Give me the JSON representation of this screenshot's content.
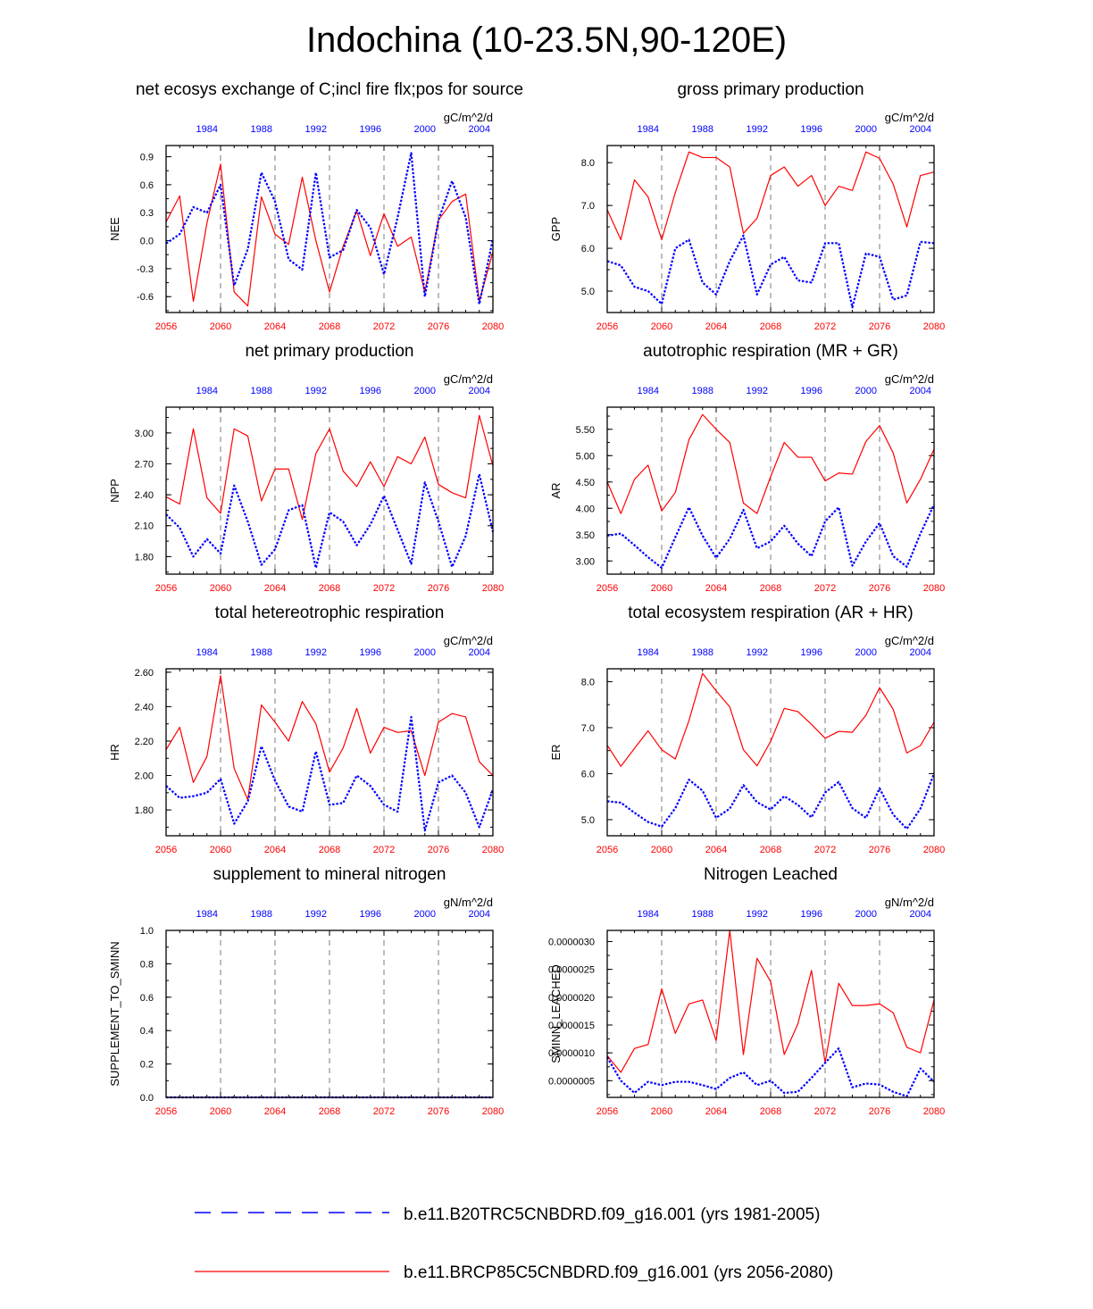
{
  "page_title": "Indochina (10-23.5N,90-120E)",
  "colors": {
    "red": "#ff0000",
    "blue": "#0000ff",
    "axis": "#000000",
    "grid": "#444444"
  },
  "top_axis_ticks": [
    "1984",
    "1988",
    "1992",
    "1996",
    "2000",
    "2004"
  ],
  "bottom_axis_ticks": [
    "2056",
    "2060",
    "2064",
    "2068",
    "2072",
    "2076",
    "2080"
  ],
  "legend": [
    {
      "label": "b.e11.B20TRC5CNBDRD.f09_g16.001 (yrs 1981-2005)",
      "color": "#0000ff",
      "style": "dashed"
    },
    {
      "label": "b.e11.BRCP85C5CNBDRD.f09_g16.001 (yrs 2056-2080)",
      "color": "#ff0000",
      "style": "solid"
    }
  ],
  "chart_data": [
    {
      "type": "line",
      "title": "net ecosys exchange of C;incl fire flx;pos for source",
      "units": "gC/m^2/d",
      "ylabel": "NEE",
      "ylim": [
        -0.77,
        1.02
      ],
      "yticks": [
        -0.6,
        -0.3,
        0.0,
        0.3,
        0.6,
        0.9
      ],
      "ytick_labels": [
        "-0.6",
        "-0.3",
        "0.0",
        "0.3",
        "0.6",
        "0.9"
      ],
      "x_future": [
        2056,
        2057,
        2058,
        2059,
        2060,
        2061,
        2062,
        2063,
        2064,
        2065,
        2066,
        2067,
        2068,
        2069,
        2070,
        2071,
        2072,
        2073,
        2074,
        2075,
        2076,
        2077,
        2078,
        2079,
        2080
      ],
      "x_hist": [
        1981,
        1982,
        1983,
        1984,
        1985,
        1986,
        1987,
        1988,
        1989,
        1990,
        1991,
        1992,
        1993,
        1994,
        1995,
        1996,
        1997,
        1998,
        1999,
        2000,
        2001,
        2002,
        2003,
        2004,
        2005
      ],
      "series": [
        {
          "name": "b.e11.BRCP85C5CNBDRD.f09_g16.001",
          "color": "#ff0000",
          "values": [
            0.2,
            0.48,
            -0.65,
            0.19,
            0.82,
            -0.55,
            -0.7,
            0.47,
            0.07,
            -0.04,
            0.68,
            0.0,
            -0.55,
            -0.06,
            0.32,
            -0.16,
            0.29,
            -0.06,
            0.04,
            -0.55,
            0.22,
            0.42,
            0.5,
            -0.65,
            -0.12
          ]
        },
        {
          "name": "b.e11.B20TRC5CNBDRD.f09_g16.001",
          "color": "#0000ff",
          "values": [
            -0.03,
            0.07,
            0.36,
            0.3,
            0.6,
            -0.48,
            -0.09,
            0.73,
            0.42,
            -0.2,
            -0.31,
            0.73,
            -0.18,
            -0.1,
            0.33,
            0.14,
            -0.36,
            0.25,
            0.94,
            -0.6,
            0.22,
            0.64,
            0.25,
            -0.68,
            0.02
          ]
        }
      ]
    },
    {
      "type": "line",
      "title": "gross primary production",
      "units": "gC/m^2/d",
      "ylabel": "GPP",
      "ylim": [
        4.5,
        8.4
      ],
      "yticks": [
        5.0,
        6.0,
        7.0,
        8.0
      ],
      "ytick_labels": [
        "5.0",
        "6.0",
        "7.0",
        "8.0"
      ],
      "x_future": [
        2056,
        2057,
        2058,
        2059,
        2060,
        2061,
        2062,
        2063,
        2064,
        2065,
        2066,
        2067,
        2068,
        2069,
        2070,
        2071,
        2072,
        2073,
        2074,
        2075,
        2076,
        2077,
        2078,
        2079,
        2080
      ],
      "x_hist": [
        1981,
        1982,
        1983,
        1984,
        1985,
        1986,
        1987,
        1988,
        1989,
        1990,
        1991,
        1992,
        1993,
        1994,
        1995,
        1996,
        1997,
        1998,
        1999,
        2000,
        2001,
        2002,
        2003,
        2004,
        2005
      ],
      "series": [
        {
          "name": "b.e11.BRCP85C5CNBDRD.f09_g16.001",
          "color": "#ff0000",
          "values": [
            6.9,
            6.2,
            7.6,
            7.2,
            6.2,
            7.3,
            8.25,
            8.12,
            8.12,
            7.9,
            6.35,
            6.7,
            7.7,
            7.9,
            7.45,
            7.7,
            7.0,
            7.45,
            7.35,
            8.25,
            8.1,
            7.5,
            6.5,
            7.7,
            7.78
          ]
        },
        {
          "name": "b.e11.B20TRC5CNBDRD.f09_g16.001",
          "color": "#0000ff",
          "values": [
            5.7,
            5.6,
            5.1,
            5.0,
            4.7,
            6.0,
            6.2,
            5.2,
            4.92,
            5.7,
            6.3,
            4.92,
            5.62,
            5.8,
            5.25,
            5.2,
            6.12,
            6.12,
            4.62,
            5.88,
            5.8,
            4.8,
            4.9,
            6.15,
            6.12
          ]
        }
      ]
    },
    {
      "type": "line",
      "title": "net primary production",
      "units": "gC/m^2/d",
      "ylabel": "NPP",
      "ylim": [
        1.63,
        3.25
      ],
      "yticks": [
        1.8,
        2.1,
        2.4,
        2.7,
        3.0
      ],
      "ytick_labels": [
        "1.80",
        "2.10",
        "2.40",
        "2.70",
        "3.00"
      ],
      "x_future": [
        2056,
        2057,
        2058,
        2059,
        2060,
        2061,
        2062,
        2063,
        2064,
        2065,
        2066,
        2067,
        2068,
        2069,
        2070,
        2071,
        2072,
        2073,
        2074,
        2075,
        2076,
        2077,
        2078,
        2079,
        2080
      ],
      "x_hist": [
        1981,
        1982,
        1983,
        1984,
        1985,
        1986,
        1987,
        1988,
        1989,
        1990,
        1991,
        1992,
        1993,
        1994,
        1995,
        1996,
        1997,
        1998,
        1999,
        2000,
        2001,
        2002,
        2003,
        2004,
        2005
      ],
      "series": [
        {
          "name": "b.e11.BRCP85C5CNBDRD.f09_g16.001",
          "color": "#ff0000",
          "values": [
            2.38,
            2.31,
            3.04,
            2.37,
            2.22,
            3.04,
            2.97,
            2.34,
            2.65,
            2.65,
            2.16,
            2.8,
            3.04,
            2.63,
            2.48,
            2.72,
            2.48,
            2.77,
            2.7,
            2.96,
            2.5,
            2.42,
            2.37,
            3.17,
            2.68
          ]
        },
        {
          "name": "b.e11.B20TRC5CNBDRD.f09_g16.001",
          "color": "#0000ff",
          "values": [
            2.21,
            2.08,
            1.8,
            1.97,
            1.83,
            2.49,
            2.14,
            1.72,
            1.87,
            2.25,
            2.3,
            1.69,
            2.23,
            2.14,
            1.91,
            2.11,
            2.39,
            2.06,
            1.73,
            2.52,
            2.14,
            1.7,
            2.0,
            2.6,
            2.04
          ]
        }
      ]
    },
    {
      "type": "line",
      "title": "autotrophic respiration (MR + GR)",
      "units": "gC/m^2/d",
      "ylabel": "AR",
      "ylim": [
        2.75,
        5.92
      ],
      "yticks": [
        3.0,
        3.5,
        4.0,
        4.5,
        5.0,
        5.5
      ],
      "ytick_labels": [
        "3.00",
        "3.50",
        "4.00",
        "4.50",
        "5.00",
        "5.50"
      ],
      "x_future": [
        2056,
        2057,
        2058,
        2059,
        2060,
        2061,
        2062,
        2063,
        2064,
        2065,
        2066,
        2067,
        2068,
        2069,
        2070,
        2071,
        2072,
        2073,
        2074,
        2075,
        2076,
        2077,
        2078,
        2079,
        2080
      ],
      "x_hist": [
        1981,
        1982,
        1983,
        1984,
        1985,
        1986,
        1987,
        1988,
        1989,
        1990,
        1991,
        1992,
        1993,
        1994,
        1995,
        1996,
        1997,
        1998,
        1999,
        2000,
        2001,
        2002,
        2003,
        2004,
        2005
      ],
      "series": [
        {
          "name": "b.e11.BRCP85C5CNBDRD.f09_g16.001",
          "color": "#ff0000",
          "values": [
            4.5,
            3.9,
            4.55,
            4.82,
            3.95,
            4.3,
            5.3,
            5.78,
            5.5,
            5.25,
            4.1,
            3.9,
            4.6,
            5.25,
            4.97,
            4.97,
            4.52,
            4.67,
            4.65,
            5.27,
            5.57,
            5.05,
            4.1,
            4.55,
            5.12
          ]
        },
        {
          "name": "b.e11.B20TRC5CNBDRD.f09_g16.001",
          "color": "#0000ff",
          "values": [
            3.48,
            3.52,
            3.3,
            3.07,
            2.87,
            3.45,
            4.02,
            3.48,
            3.06,
            3.42,
            3.97,
            3.24,
            3.37,
            3.67,
            3.33,
            3.09,
            3.75,
            4.02,
            2.91,
            3.37,
            3.72,
            3.09,
            2.89,
            3.52,
            4.07
          ]
        }
      ]
    },
    {
      "type": "line",
      "title": "total hetereotrophic respiration",
      "units": "gC/m^2/d",
      "ylabel": "HR",
      "ylim": [
        1.65,
        2.62
      ],
      "yticks": [
        1.8,
        2.0,
        2.2,
        2.4,
        2.6
      ],
      "ytick_labels": [
        "1.80",
        "2.00",
        "2.20",
        "2.40",
        "2.60"
      ],
      "x_future": [
        2056,
        2057,
        2058,
        2059,
        2060,
        2061,
        2062,
        2063,
        2064,
        2065,
        2066,
        2067,
        2068,
        2069,
        2070,
        2071,
        2072,
        2073,
        2074,
        2075,
        2076,
        2077,
        2078,
        2079,
        2080
      ],
      "x_hist": [
        1981,
        1982,
        1983,
        1984,
        1985,
        1986,
        1987,
        1988,
        1989,
        1990,
        1991,
        1992,
        1993,
        1994,
        1995,
        1996,
        1997,
        1998,
        1999,
        2000,
        2001,
        2002,
        2003,
        2004,
        2005
      ],
      "series": [
        {
          "name": "b.e11.BRCP85C5CNBDRD.f09_g16.001",
          "color": "#ff0000",
          "values": [
            2.15,
            2.28,
            1.96,
            2.11,
            2.58,
            2.04,
            1.86,
            2.41,
            2.31,
            2.2,
            2.43,
            2.3,
            2.02,
            2.16,
            2.39,
            2.13,
            2.28,
            2.25,
            2.26,
            2.0,
            2.31,
            2.36,
            2.34,
            2.08,
            2.0
          ]
        },
        {
          "name": "b.e11.B20TRC5CNBDRD.f09_g16.001",
          "color": "#0000ff",
          "values": [
            1.94,
            1.87,
            1.88,
            1.9,
            1.98,
            1.72,
            1.85,
            2.17,
            1.97,
            1.82,
            1.79,
            2.14,
            1.83,
            1.84,
            2.0,
            1.94,
            1.83,
            1.79,
            2.34,
            1.68,
            1.96,
            2.0,
            1.9,
            1.7,
            1.92
          ]
        }
      ]
    },
    {
      "type": "line",
      "title": "total ecosystem respiration (AR + HR)",
      "units": "gC/m^2/d",
      "ylabel": "ER",
      "ylim": [
        4.65,
        8.28
      ],
      "yticks": [
        5.0,
        6.0,
        7.0,
        8.0
      ],
      "ytick_labels": [
        "5.0",
        "6.0",
        "7.0",
        "8.0"
      ],
      "x_future": [
        2056,
        2057,
        2058,
        2059,
        2060,
        2061,
        2062,
        2063,
        2064,
        2065,
        2066,
        2067,
        2068,
        2069,
        2070,
        2071,
        2072,
        2073,
        2074,
        2075,
        2076,
        2077,
        2078,
        2079,
        2080
      ],
      "x_hist": [
        1981,
        1982,
        1983,
        1984,
        1985,
        1986,
        1987,
        1988,
        1989,
        1990,
        1991,
        1992,
        1993,
        1994,
        1995,
        1996,
        1997,
        1998,
        1999,
        2000,
        2001,
        2002,
        2003,
        2004,
        2005
      ],
      "series": [
        {
          "name": "b.e11.BRCP85C5CNBDRD.f09_g16.001",
          "color": "#ff0000",
          "values": [
            6.62,
            6.16,
            6.55,
            6.93,
            6.52,
            6.32,
            7.15,
            8.18,
            7.8,
            7.45,
            6.52,
            6.17,
            6.7,
            7.42,
            7.35,
            7.07,
            6.77,
            6.92,
            6.9,
            7.27,
            7.87,
            7.4,
            6.45,
            6.61,
            7.12
          ]
        },
        {
          "name": "b.e11.B20TRC5CNBDRD.f09_g16.001",
          "color": "#0000ff",
          "values": [
            5.4,
            5.37,
            5.15,
            4.95,
            4.85,
            5.25,
            5.87,
            5.63,
            5.04,
            5.24,
            5.75,
            5.38,
            5.22,
            5.51,
            5.32,
            5.05,
            5.59,
            5.82,
            5.25,
            5.04,
            5.68,
            5.11,
            4.8,
            5.24,
            6.0
          ]
        }
      ]
    },
    {
      "type": "line",
      "title": "supplement to mineral nitrogen",
      "units": "gN/m^2/d",
      "ylabel": "SUPPLEMENT_TO_SMINN",
      "ylim": [
        0.0,
        1.0
      ],
      "yticks": [
        0.0,
        0.2,
        0.4,
        0.6,
        0.8,
        1.0
      ],
      "ytick_labels": [
        "0.0",
        "0.2",
        "0.4",
        "0.6",
        "0.8",
        "1.0"
      ],
      "x_future": [
        2056,
        2057,
        2058,
        2059,
        2060,
        2061,
        2062,
        2063,
        2064,
        2065,
        2066,
        2067,
        2068,
        2069,
        2070,
        2071,
        2072,
        2073,
        2074,
        2075,
        2076,
        2077,
        2078,
        2079,
        2080
      ],
      "x_hist": [
        1981,
        1982,
        1983,
        1984,
        1985,
        1986,
        1987,
        1988,
        1989,
        1990,
        1991,
        1992,
        1993,
        1994,
        1995,
        1996,
        1997,
        1998,
        1999,
        2000,
        2001,
        2002,
        2003,
        2004,
        2005
      ],
      "series": [
        {
          "name": "b.e11.BRCP85C5CNBDRD.f09_g16.001",
          "color": "#ff0000",
          "values": [
            0,
            0,
            0,
            0,
            0,
            0,
            0,
            0,
            0,
            0,
            0,
            0,
            0,
            0,
            0,
            0,
            0,
            0,
            0,
            0,
            0,
            0,
            0,
            0,
            0
          ]
        },
        {
          "name": "b.e11.B20TRC5CNBDRD.f09_g16.001",
          "color": "#0000ff",
          "values": [
            0,
            0,
            0,
            0,
            0,
            0,
            0,
            0,
            0,
            0,
            0,
            0,
            0,
            0,
            0,
            0,
            0,
            0,
            0,
            0,
            0,
            0,
            0,
            0,
            0
          ]
        }
      ]
    },
    {
      "type": "line",
      "title": "Nitrogen Leached",
      "units": "gN/m^2/d",
      "ylabel": "SMINN_LEACHED",
      "ylim": [
        2e-07,
        3.2e-06
      ],
      "yticks": [
        5e-07,
        1e-06,
        1.5e-06,
        2e-06,
        2.5e-06,
        3e-06
      ],
      "ytick_labels": [
        "0.0000005",
        "0.0000010",
        "0.0000015",
        "0.0000020",
        "0.0000025",
        "0.0000030"
      ],
      "x_future": [
        2056,
        2057,
        2058,
        2059,
        2060,
        2061,
        2062,
        2063,
        2064,
        2065,
        2066,
        2067,
        2068,
        2069,
        2070,
        2071,
        2072,
        2073,
        2074,
        2075,
        2076,
        2077,
        2078,
        2079,
        2080
      ],
      "x_hist": [
        1981,
        1982,
        1983,
        1984,
        1985,
        1986,
        1987,
        1988,
        1989,
        1990,
        1991,
        1992,
        1993,
        1994,
        1995,
        1996,
        1997,
        1998,
        1999,
        2000,
        2001,
        2002,
        2003,
        2004,
        2005
      ],
      "series": [
        {
          "name": "b.e11.BRCP85C5CNBDRD.f09_g16.001",
          "color": "#ff0000",
          "values": [
            9.5e-07,
            6.5e-07,
            1.08e-06,
            1.15e-06,
            2.15e-06,
            1.35e-06,
            1.88e-06,
            1.95e-06,
            1.22e-06,
            3.2e-06,
            9.7e-07,
            2.7e-06,
            2.28e-06,
            9.7e-07,
            1.52e-06,
            2.48e-06,
            8.2e-07,
            2.25e-06,
            1.85e-06,
            1.85e-06,
            1.88e-06,
            1.72e-06,
            1.1e-06,
            1e-06,
            1.95e-06
          ]
        },
        {
          "name": "b.e11.B20TRC5CNBDRD.f09_g16.001",
          "color": "#0000ff",
          "values": [
            9.2e-07,
            5e-07,
            2.8e-07,
            4.8e-07,
            4.2e-07,
            4.8e-07,
            4.8e-07,
            4.2e-07,
            3.5e-07,
            5.5e-07,
            6.5e-07,
            4.2e-07,
            5e-07,
            2.8e-07,
            3e-07,
            5.5e-07,
            8.2e-07,
            1.08e-06,
            3.8e-07,
            4.5e-07,
            4.3e-07,
            3e-07,
            2.2e-07,
            7.2e-07,
            4.8e-07
          ]
        }
      ]
    }
  ]
}
